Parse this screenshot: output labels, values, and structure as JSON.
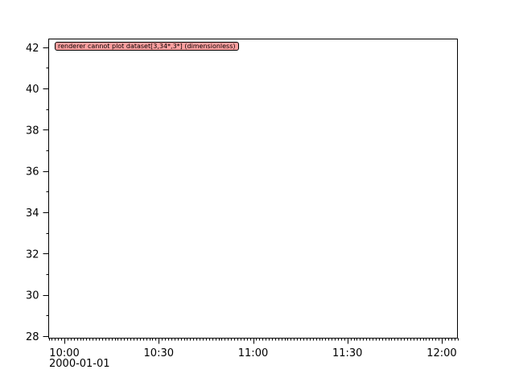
{
  "chart_data": {
    "type": "line",
    "title": "",
    "xlabel": "",
    "ylabel": "",
    "x_axis": {
      "type": "time",
      "range": [
        "2000-01-01 09:55",
        "2000-01-01 12:05"
      ],
      "tick_labels": [
        "10:00",
        "10:30",
        "11:00",
        "11:30",
        "12:00"
      ],
      "date_label": "2000-01-01",
      "minor_tick_interval_minutes": 1
    },
    "y_axis": {
      "range": [
        27.9,
        42.4
      ],
      "tick_labels": [
        "28",
        "30",
        "32",
        "34",
        "36",
        "38",
        "40",
        "42"
      ],
      "minor_tick_interval": 1
    },
    "grid": false,
    "series": [],
    "annotations": [
      "renderer cannot plot dataset[3,34*,3*] (dimensionless)"
    ],
    "annotation_color": "#ffa0a0"
  }
}
